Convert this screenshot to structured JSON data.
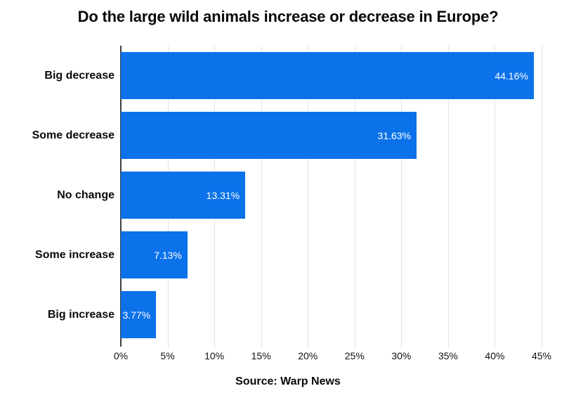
{
  "title": "Do the large wild animals increase or decrease in Europe?",
  "source": "Source: Warp News",
  "chart_data": {
    "type": "bar",
    "orientation": "horizontal",
    "title": "Do the large wild animals increase or decrease in Europe?",
    "categories": [
      "Big decrease",
      "Some decrease",
      "No change",
      "Some increase",
      "Big increase"
    ],
    "values": [
      44.16,
      31.63,
      13.31,
      7.13,
      3.77
    ],
    "value_labels": [
      "44.16%",
      "31.63%",
      "13.31%",
      "7.13%",
      "3.77%"
    ],
    "x_ticks": [
      "0%",
      "5%",
      "10%",
      "15%",
      "20%",
      "25%",
      "30%",
      "35%",
      "40%",
      "45%"
    ],
    "x_tick_step": 5,
    "xlim": [
      0,
      45
    ],
    "xlabel": "",
    "ylabel": "",
    "grid": true,
    "legend": "none",
    "colors": {
      "bar": "#0b72ea",
      "bar_value_text": "#ffffff",
      "gridline": "#e4e4e4",
      "axis_line": "#3f3f3f",
      "text": "#0a0a0a"
    }
  }
}
